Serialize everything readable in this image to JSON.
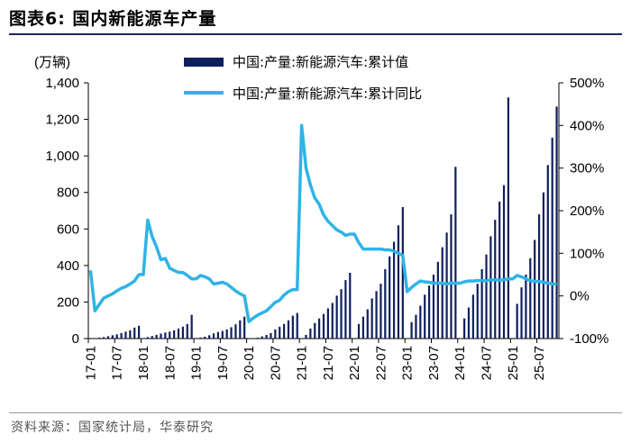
{
  "figure": {
    "title": "图表6:   国内新能源车产量",
    "source": "资料来源：国家统计局，华泰研究"
  },
  "colors": {
    "bar": "#0f1f5c",
    "line": "#2fb4e6",
    "axis": "#000000"
  },
  "chart_data": {
    "type": "bar+line",
    "unit_label": "(万辆)",
    "y_left": {
      "min": 0,
      "max": 1400,
      "ticks": [
        "0",
        "200",
        "400",
        "600",
        "800",
        "1,000",
        "1,200",
        "1,400"
      ]
    },
    "y_right": {
      "min": -100,
      "max": 500,
      "ticks": [
        "-100%",
        "0%",
        "100%",
        "200%",
        "300%",
        "400%",
        "500%"
      ]
    },
    "x_tick_labels": [
      "17-01",
      "17-07",
      "18-01",
      "18-07",
      "19-01",
      "19-07",
      "20-01",
      "20-07",
      "21-01",
      "21-07",
      "22-01",
      "22-07",
      "23-01",
      "23-07",
      "24-01",
      "24-07",
      "25-01",
      "25-07"
    ],
    "series": [
      {
        "name": "中国:产量:新能源汽车:累计值",
        "type": "bar",
        "axis": "left",
        "values": [
          null,
          3,
          5,
          8,
          13,
          18,
          23,
          30,
          38,
          45,
          60,
          70,
          null,
          8,
          14,
          20,
          27,
          33,
          38,
          45,
          55,
          65,
          80,
          130,
          null,
          6,
          10,
          18,
          28,
          36,
          42,
          50,
          62,
          78,
          100,
          120,
          null,
          2,
          5,
          12,
          20,
          30,
          50,
          65,
          80,
          100,
          125,
          140,
          null,
          20,
          55,
          85,
          110,
          135,
          165,
          195,
          235,
          270,
          320,
          360,
          null,
          80,
          120,
          160,
          220,
          260,
          300,
          380,
          450,
          530,
          620,
          720,
          null,
          90,
          130,
          180,
          240,
          290,
          350,
          420,
          500,
          580,
          680,
          940,
          null,
          110,
          170,
          240,
          300,
          380,
          460,
          560,
          650,
          750,
          840,
          1320,
          null,
          190,
          280,
          350,
          440,
          540,
          680,
          800,
          950,
          1100,
          1270
        ]
      },
      {
        "name": "中国:产量:新能源汽车:累计同比",
        "type": "line",
        "axis": "right",
        "values": [
          60,
          -35,
          -20,
          -5,
          0,
          5,
          12,
          18,
          22,
          28,
          35,
          50,
          50,
          178,
          140,
          115,
          85,
          88,
          65,
          60,
          55,
          55,
          48,
          40,
          40,
          48,
          45,
          40,
          28,
          30,
          32,
          28,
          20,
          12,
          5,
          0,
          -60,
          -52,
          -45,
          -40,
          -35,
          -25,
          -15,
          -10,
          2,
          10,
          15,
          15,
          400,
          300,
          260,
          230,
          215,
          190,
          175,
          165,
          155,
          150,
          142,
          145,
          145,
          125,
          110,
          110,
          110,
          110,
          110,
          108,
          108,
          105,
          100,
          95,
          10,
          20,
          28,
          35,
          33,
          32,
          30,
          30,
          30,
          28,
          30,
          30,
          30,
          33,
          35,
          35,
          36,
          36,
          35,
          38,
          38,
          37,
          38,
          40,
          40,
          48,
          45,
          40,
          36,
          34,
          34,
          32,
          30,
          28,
          28
        ]
      }
    ]
  }
}
